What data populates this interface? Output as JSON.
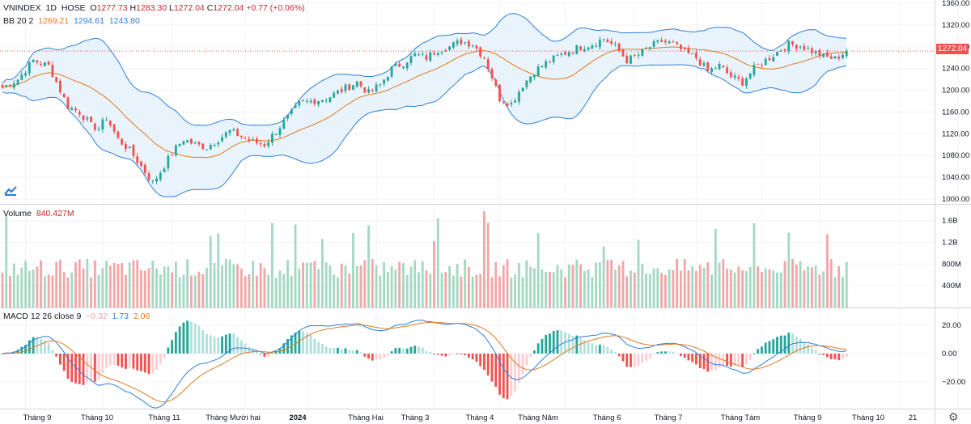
{
  "header": {
    "symbol": "VNINDEX",
    "interval": "1D",
    "exchange": "HOSE",
    "o_label": "O",
    "o_value": "1277.73",
    "h_label": "H",
    "h_value": "1283.30",
    "l_label": "L",
    "l_value": "1272.04",
    "c_label": "C",
    "c_value": "1272.04",
    "change": "+0.77 (+0.06%)"
  },
  "bb": {
    "label": "BB 20 2",
    "basis": "1269.21",
    "upper": "1294.61",
    "lower": "1243.80"
  },
  "volume": {
    "label": "Volume",
    "value": "840.427M"
  },
  "macd": {
    "label": "MACD 12 26 close 9",
    "hist": "−0.32",
    "macd": "1.73",
    "signal": "2.06"
  },
  "last_price_tag": "1272.04",
  "colors": {
    "up": "#26a69a",
    "down": "#ef5350",
    "up_vol": "#a5d8c3",
    "down_vol": "#f2a7a7",
    "basis": "#e07a1f",
    "bands": "#2e7fd8",
    "band_fill": "#e3f0fb",
    "macd": "#2e7fd8",
    "signal": "#e07a1f",
    "price_tag": "#ef5350"
  },
  "chart_data": [
    {
      "type": "candlestick",
      "title": "VNINDEX 1D HOSE",
      "y_ticks": [
        1000,
        1040,
        1080,
        1120,
        1160,
        1200,
        1240,
        1280,
        1320,
        1360
      ],
      "y_tick_labels": [
        "1000.00",
        "1040.00",
        "1080.00",
        "1120.00",
        "1160.00",
        "1200.00",
        "1240.00",
        "1280.00",
        "1320.00",
        "1360.00"
      ],
      "ylim": [
        990,
        1360
      ],
      "x_labels": [
        "Tháng 9",
        "Tháng 10",
        "Tháng 11",
        "Tháng Mười hai",
        "2024",
        "Tháng Hai",
        "Tháng 3",
        "Tháng 4",
        "Tháng Năm",
        "Tháng 6",
        "Tháng 7",
        "Tháng Tám",
        "Tháng 9",
        "Tháng 10",
        "21"
      ],
      "close_path": [
        [
          0,
          1205
        ],
        [
          4,
          1220
        ],
        [
          8,
          1255
        ],
        [
          12,
          1245
        ],
        [
          14,
          1215
        ],
        [
          17,
          1170
        ],
        [
          20,
          1160
        ],
        [
          23,
          1135
        ],
        [
          25,
          1130
        ],
        [
          27,
          1150
        ],
        [
          30,
          1110
        ],
        [
          33,
          1090
        ],
        [
          36,
          1060
        ],
        [
          39,
          1030
        ],
        [
          41,
          1050
        ],
        [
          44,
          1085
        ],
        [
          47,
          1110
        ],
        [
          50,
          1100
        ],
        [
          53,
          1095
        ],
        [
          56,
          1110
        ],
        [
          59,
          1125
        ],
        [
          62,
          1115
        ],
        [
          65,
          1105
        ],
        [
          68,
          1100
        ],
        [
          71,
          1125
        ],
        [
          74,
          1150
        ],
        [
          77,
          1175
        ],
        [
          80,
          1180
        ],
        [
          84,
          1185
        ],
        [
          88,
          1200
        ],
        [
          92,
          1215
        ],
        [
          95,
          1195
        ],
        [
          98,
          1210
        ],
        [
          101,
          1240
        ],
        [
          104,
          1250
        ],
        [
          107,
          1265
        ],
        [
          110,
          1260
        ],
        [
          113,
          1275
        ],
        [
          116,
          1280
        ],
        [
          119,
          1290
        ],
        [
          122,
          1285
        ],
        [
          125,
          1260
        ],
        [
          127,
          1225
        ],
        [
          129,
          1185
        ],
        [
          132,
          1175
        ],
        [
          135,
          1210
        ],
        [
          138,
          1235
        ],
        [
          141,
          1250
        ],
        [
          144,
          1262
        ],
        [
          147,
          1272
        ],
        [
          150,
          1280
        ],
        [
          153,
          1285
        ],
        [
          156,
          1295
        ],
        [
          159,
          1280
        ],
        [
          162,
          1255
        ],
        [
          165,
          1265
        ],
        [
          168,
          1280
        ],
        [
          171,
          1290
        ],
        [
          174,
          1285
        ],
        [
          177,
          1270
        ],
        [
          180,
          1260
        ],
        [
          183,
          1235
        ],
        [
          186,
          1245
        ],
        [
          189,
          1225
        ],
        [
          192,
          1215
        ],
        [
          195,
          1240
        ],
        [
          198,
          1255
        ],
        [
          201,
          1270
        ],
        [
          204,
          1285
        ],
        [
          207,
          1282
        ],
        [
          210,
          1272
        ],
        [
          213,
          1262
        ],
        [
          216,
          1258
        ],
        [
          219,
          1272
        ]
      ],
      "bb": {
        "basis": "1269.21",
        "upper": "1294.61",
        "lower": "1243.80",
        "period": 20,
        "mult": 2
      },
      "last_close": 1272.04
    },
    {
      "type": "bar",
      "title": "Volume",
      "y_ticks": [
        400,
        800,
        1200,
        1600
      ],
      "y_tick_labels": [
        "400M",
        "800M",
        "1.2B",
        "1.6B"
      ],
      "ylim": [
        0,
        1700
      ]
    },
    {
      "type": "line",
      "title": "MACD 12 26 close 9",
      "y_ticks": [
        -20,
        0,
        20
      ],
      "y_tick_labels": [
        "−20.00",
        "0.00",
        "20.00"
      ],
      "ylim": [
        -34,
        25
      ]
    }
  ]
}
